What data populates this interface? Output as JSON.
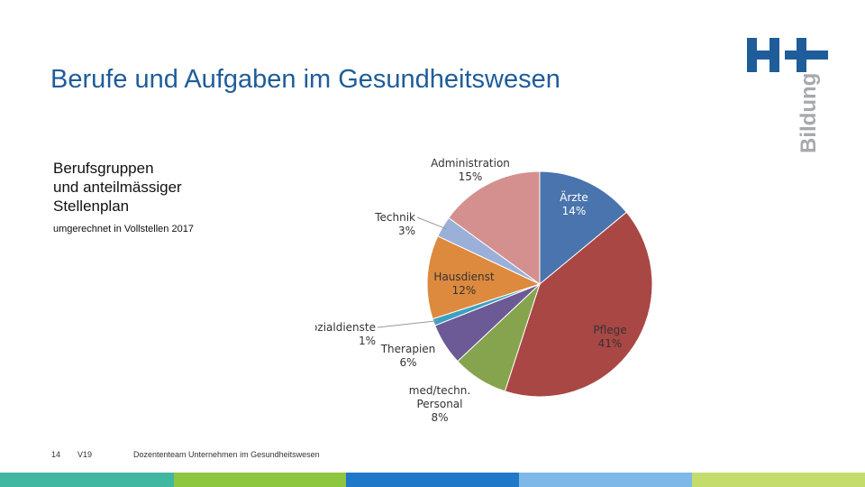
{
  "slide": {
    "title": "Berufe und Aufgaben im Gesundheitswesen",
    "subtitle_lines": [
      "Berufsgruppen",
      "und anteilmässiger",
      "Stellenplan"
    ],
    "note": "umgerechnet in Vollstellen 2017"
  },
  "logo": {
    "mark": "H+",
    "word": "Bildung",
    "mark_color": "#1f5d9a",
    "word_color": "#a7a9ac"
  },
  "footer": {
    "page_number": "14",
    "version": "V19",
    "text": "Dozententeam Unternehmen im Gesundheitswesen"
  },
  "bottom_bar_colors": [
    "#41b6a1",
    "#8dc63f",
    "#1f78c8",
    "#7db8e8",
    "#c3dc6b"
  ],
  "chart_data": {
    "type": "pie",
    "title": "",
    "start": "top, clockwise",
    "slices": [
      {
        "label": "Ärzte",
        "value": 14,
        "pct_label": "14%",
        "color": "#4a74ad",
        "label_color": "#ffffff"
      },
      {
        "label": "Pflege",
        "value": 41,
        "pct_label": "41%",
        "color": "#a94745",
        "label_color": "#333333"
      },
      {
        "label": "med/techn. Personal",
        "value": 8,
        "pct_label": "8%",
        "color": "#86a34e",
        "label_color": "#333333"
      },
      {
        "label": "Therapien",
        "value": 6,
        "pct_label": "6%",
        "color": "#6b5a95",
        "label_color": "#333333"
      },
      {
        "label": "Sozialdienste",
        "value": 1,
        "pct_label": "1%",
        "color": "#3ea0c0",
        "label_color": "#333333"
      },
      {
        "label": "Hausdienst",
        "value": 12,
        "pct_label": "12%",
        "color": "#dd8a3e",
        "label_color": "#333333"
      },
      {
        "label": "Technik",
        "value": 3,
        "pct_label": "3%",
        "color": "#9ab0d8",
        "label_color": "#333333"
      },
      {
        "label": "Administration",
        "value": 15,
        "pct_label": "15%",
        "color": "#d4908f",
        "label_color": "#333333"
      }
    ]
  }
}
